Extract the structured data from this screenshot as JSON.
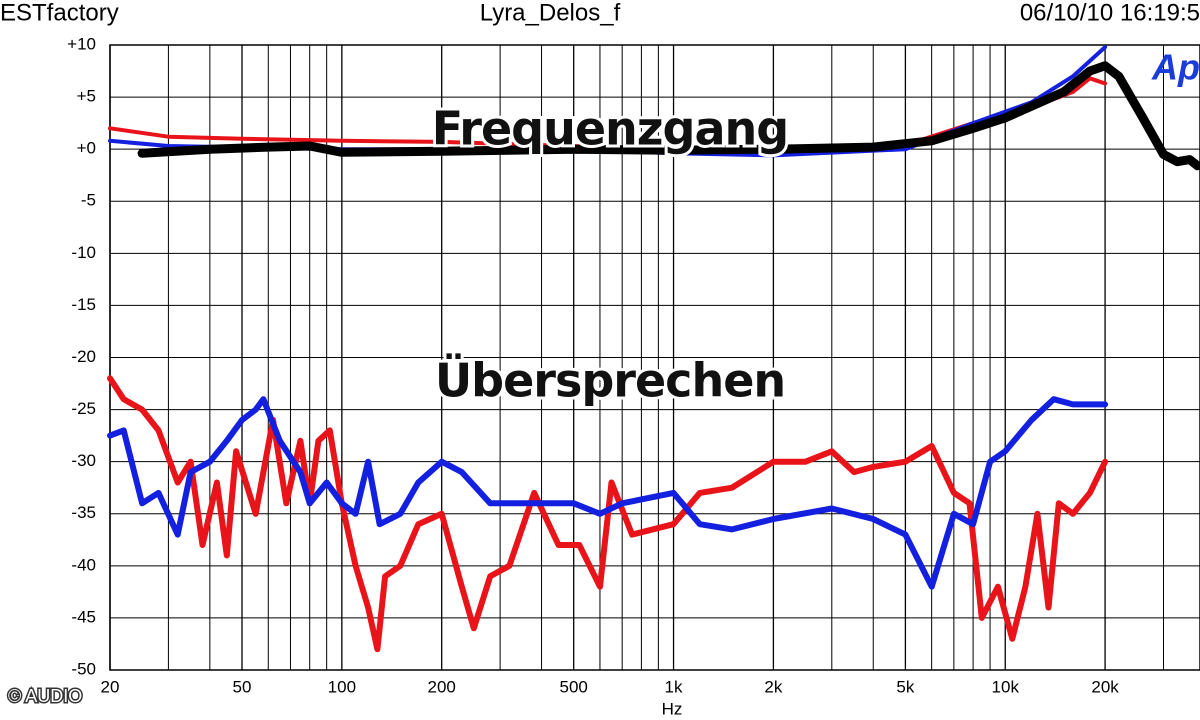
{
  "header": {
    "left": "ESTfactory",
    "center": "Lyra_Delos_f",
    "right": "06/10/10 16:19:5",
    "logo": "Ap"
  },
  "copyright": "© AUDIO",
  "chart_data": {
    "type": "line",
    "x_label": "Hz",
    "log_x": true,
    "grid": true,
    "xlim": [
      20,
      38650
    ],
    "ylim": [
      -50,
      10
    ],
    "xticks": [
      20,
      50,
      100,
      200,
      500,
      {
        "value": 1000,
        "label": "1k"
      },
      {
        "value": 2000,
        "label": "2k"
      },
      {
        "value": 5000,
        "label": "5k"
      },
      {
        "value": 10000,
        "label": "10k"
      },
      {
        "value": 20000,
        "label": "20k"
      }
    ],
    "xminor_ticks": [
      30,
      40,
      60,
      70,
      80,
      90,
      300,
      400,
      600,
      700,
      800,
      900,
      3000,
      4000,
      6000,
      7000,
      8000,
      9000,
      30000
    ],
    "yticks": [
      {
        "value": 10,
        "label": "+10"
      },
      {
        "value": 5,
        "label": "+5"
      },
      {
        "value": 0,
        "label": "+0"
      },
      -5,
      -10,
      -15,
      -20,
      -25,
      -30,
      -35,
      -40,
      -45,
      -50
    ],
    "annotations": [
      "Frequenzgang",
      "Übersprechen"
    ],
    "series": [
      {
        "color": "#e8141a",
        "width": 4,
        "x": [
          20,
          30,
          50,
          100,
          200,
          500,
          1000,
          2000,
          5000,
          8000,
          12000,
          16000,
          18000,
          20000
        ],
        "values": [
          2,
          1.2,
          1,
          0.8,
          0.7,
          0.3,
          -0.2,
          -0.3,
          0.4,
          2.5,
          4,
          5.5,
          6.8,
          6.3
        ]
      },
      {
        "color": "#1420e0",
        "width": 4,
        "x": [
          20,
          30,
          100,
          500,
          1000,
          2000,
          5000,
          8000,
          12000,
          16000,
          20000
        ],
        "values": [
          0.8,
          0.3,
          0,
          0,
          -0.4,
          -0.6,
          0,
          2.5,
          4.5,
          7,
          9.8
        ]
      },
      {
        "color": "#000000",
        "width": 9,
        "x": [
          25,
          40,
          60,
          80,
          100,
          200,
          500,
          1000,
          2000,
          4000,
          6000,
          8000,
          10000,
          15000,
          18000,
          20000,
          22000,
          26000,
          30000,
          33000,
          36000,
          38000
        ],
        "values": [
          -0.4,
          0,
          0.2,
          0.3,
          -0.3,
          -0.2,
          0,
          -0.1,
          0,
          0.2,
          0.8,
          2,
          3,
          5.5,
          7.5,
          8,
          7,
          3,
          -0.5,
          -1.2,
          -1,
          -1.6
        ]
      },
      {
        "color": "#e8141a",
        "width": 6,
        "x": [
          20,
          22,
          25,
          28,
          32,
          35,
          38,
          42,
          45,
          48,
          55,
          62,
          68,
          75,
          80,
          85,
          92,
          100,
          110,
          120,
          128,
          135,
          150,
          170,
          200,
          230,
          250,
          280,
          320,
          380,
          450,
          520,
          600,
          650,
          750,
          1000,
          1200,
          1500,
          2000,
          2500,
          3000,
          3500,
          4000,
          5000,
          6000,
          7000,
          7800,
          8500,
          9500,
          10500,
          11500,
          12500,
          13500,
          14500,
          16000,
          18000,
          20000
        ],
        "values": [
          -22,
          -24,
          -25,
          -27,
          -32,
          -30,
          -38,
          -32,
          -39,
          -29,
          -35,
          -26,
          -34,
          -28,
          -34,
          -28,
          -27,
          -34,
          -40,
          -44,
          -48,
          -41,
          -40,
          -36,
          -35,
          -42,
          -46,
          -41,
          -40,
          -33,
          -38,
          -38,
          -42,
          -32,
          -37,
          -36,
          -33,
          -32.5,
          -30,
          -30,
          -29,
          -31,
          -30.5,
          -30,
          -28.5,
          -33,
          -34,
          -45,
          -42,
          -47,
          -42,
          -35,
          -44,
          -34,
          -35,
          -33,
          -30
        ]
      },
      {
        "color": "#1420e0",
        "width": 6,
        "x": [
          20,
          22,
          25,
          28,
          32,
          35,
          40,
          45,
          50,
          55,
          58,
          65,
          75,
          80,
          90,
          100,
          110,
          120,
          130,
          150,
          170,
          200,
          230,
          280,
          350,
          500,
          600,
          700,
          1000,
          1200,
          1500,
          2000,
          3000,
          4000,
          5000,
          6000,
          7000,
          8000,
          9000,
          10000,
          12000,
          14000,
          16000,
          20000
        ],
        "values": [
          -27.5,
          -27,
          -34,
          -33,
          -37,
          -31,
          -30,
          -28,
          -26,
          -25,
          -24,
          -28,
          -31,
          -34,
          -32,
          -34,
          -35,
          -30,
          -36,
          -35,
          -32,
          -30,
          -31,
          -34,
          -34,
          -34,
          -35,
          -34,
          -33,
          -36,
          -36.5,
          -35.5,
          -34.5,
          -35.5,
          -37,
          -42,
          -35,
          -36,
          -30,
          -29,
          -26,
          -24,
          -24.5,
          -24.5
        ]
      }
    ]
  }
}
